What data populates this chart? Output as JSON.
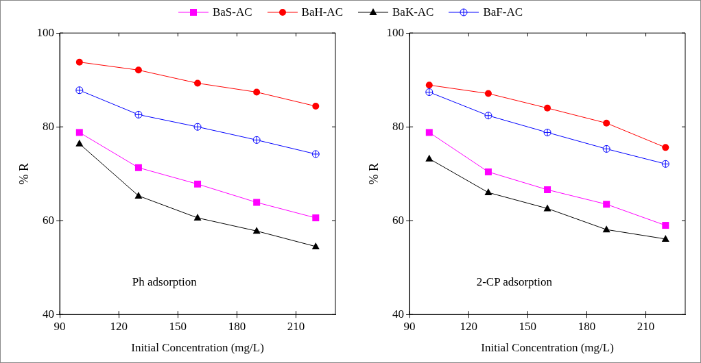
{
  "chart_data": [
    {
      "type": "line",
      "xlabel": "Initial Concentration (mg/L)",
      "ylabel": "% R",
      "x": [
        100,
        130,
        160,
        190,
        220
      ],
      "xlim": [
        90,
        230
      ],
      "xticks": [
        90,
        120,
        150,
        180,
        210
      ],
      "ylim": [
        40,
        100
      ],
      "yticks": [
        40,
        60,
        80,
        100
      ],
      "legend": "top",
      "grid": false,
      "line_style": "solid",
      "annotations": [
        "Ph adsorption"
      ],
      "series": [
        {
          "name": "BaS-AC",
          "color": "#ff00ff",
          "marker": "square",
          "values": [
            78.8,
            71.3,
            67.8,
            63.9,
            60.6
          ]
        },
        {
          "name": "BaH-AC",
          "color": "#ff0000",
          "marker": "circle",
          "values": [
            93.8,
            92.1,
            89.3,
            87.4,
            84.4
          ]
        },
        {
          "name": "BaK-AC",
          "color": "#000000",
          "marker": "triangle",
          "values": [
            76.4,
            65.3,
            60.6,
            57.8,
            54.5
          ]
        },
        {
          "name": "BaF-AC",
          "color": "#0000ff",
          "marker": "circle",
          "values": [
            87.8,
            82.6,
            80.0,
            77.2,
            74.2
          ]
        }
      ]
    },
    {
      "type": "line",
      "xlabel": "Initial Concentration (mg/L)",
      "ylabel": "% R",
      "x": [
        100,
        130,
        160,
        190,
        220
      ],
      "xlim": [
        90,
        230
      ],
      "xticks": [
        90,
        120,
        150,
        180,
        210
      ],
      "ylim": [
        40,
        100
      ],
      "yticks": [
        40,
        60,
        80,
        100
      ],
      "legend": "top",
      "grid": false,
      "line_style": "solid",
      "annotations": [
        "2-CP adsorption"
      ],
      "series": [
        {
          "name": "BaS-AC",
          "color": "#ff00ff",
          "marker": "square",
          "values": [
            78.8,
            70.4,
            66.6,
            63.5,
            59.0
          ]
        },
        {
          "name": "BaH-AC",
          "color": "#ff0000",
          "marker": "circle",
          "values": [
            88.9,
            87.1,
            84.0,
            80.8,
            75.6
          ]
        },
        {
          "name": "BaK-AC",
          "color": "#000000",
          "marker": "triangle",
          "values": [
            73.2,
            66.0,
            62.6,
            58.1,
            56.1
          ]
        },
        {
          "name": "BaF-AC",
          "color": "#0000ff",
          "marker": "circle",
          "values": [
            87.4,
            82.4,
            78.8,
            75.3,
            72.1
          ]
        }
      ]
    }
  ]
}
